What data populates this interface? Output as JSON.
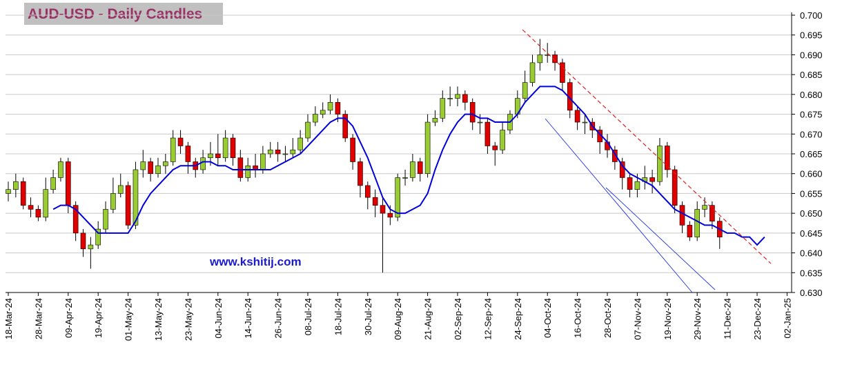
{
  "chart_data": {
    "type": "candlestick",
    "title": "AUD-USD - Daily Candles",
    "annotation": "www.kshitij.com",
    "categories": [
      "18-Mar-24",
      null,
      null,
      null,
      "28-Mar-24",
      null,
      null,
      null,
      "09-Apr-24",
      null,
      null,
      null,
      "19-Apr-24",
      null,
      null,
      null,
      "01-May-24",
      null,
      null,
      null,
      "13-May-24",
      null,
      null,
      null,
      "23-May-24",
      null,
      null,
      null,
      "04-Jun-24",
      null,
      null,
      null,
      "14-Jun-24",
      null,
      null,
      null,
      "26-Jun-24",
      null,
      null,
      null,
      "08-Jul-24",
      null,
      null,
      null,
      "18-Jul-24",
      null,
      null,
      null,
      "30-Jul-24",
      null,
      null,
      null,
      "09-Aug-24",
      null,
      null,
      null,
      "21-Aug-24",
      null,
      null,
      null,
      "02-Sep-24",
      null,
      null,
      null,
      "12-Sep-24",
      null,
      null,
      null,
      "24-Sep-24",
      null,
      null,
      null,
      "04-Oct-24",
      null,
      null,
      null,
      "16-Oct-24",
      null,
      null,
      null,
      "28-Oct-24",
      null,
      null,
      null,
      "07-Nov-24",
      null,
      null,
      null,
      "19-Nov-24",
      null,
      null,
      null,
      "29-Nov-24",
      null,
      null,
      null,
      "11-Dec-24",
      null,
      null,
      null,
      "23-Dec-24",
      null,
      null,
      null,
      "02-Jan-25"
    ],
    "open": [
      0.655,
      0.656,
      0.658,
      0.652,
      0.651,
      0.649,
      0.656,
      0.659,
      0.663,
      0.652,
      0.645,
      0.641,
      0.642,
      0.646,
      0.651,
      0.655,
      0.657,
      0.647,
      0.661,
      0.663,
      0.66,
      0.662,
      0.663,
      0.669,
      0.667,
      0.663,
      0.661,
      0.664,
      0.665,
      0.664,
      0.669,
      0.664,
      0.659,
      0.662,
      0.661,
      0.665,
      0.666,
      0.665,
      0.665,
      0.666,
      0.669,
      0.673,
      0.675,
      0.676,
      0.678,
      0.675,
      0.669,
      0.663,
      0.657,
      0.654,
      0.652,
      0.65,
      0.649,
      0.659,
      0.659,
      0.663,
      0.66,
      0.673,
      0.674,
      0.679,
      0.679,
      0.68,
      0.678,
      0.673,
      0.673,
      0.667,
      0.666,
      0.671,
      0.675,
      0.679,
      0.683,
      0.688,
      0.69,
      0.69,
      0.688,
      0.683,
      0.676,
      0.673,
      0.673,
      0.671,
      0.668,
      0.666,
      0.663,
      0.659,
      0.656,
      0.658,
      0.659,
      0.658,
      0.667,
      0.661,
      0.652,
      0.647,
      0.644,
      0.651,
      0.652,
      0.648,
      null,
      null,
      null,
      null,
      null,
      null,
      null,
      null,
      null
    ],
    "high": [
      0.658,
      0.66,
      0.659,
      0.654,
      0.652,
      0.659,
      0.661,
      0.664,
      0.664,
      0.653,
      0.646,
      0.644,
      0.648,
      0.653,
      0.659,
      0.66,
      0.658,
      0.663,
      0.666,
      0.664,
      0.664,
      0.665,
      0.671,
      0.671,
      0.668,
      0.664,
      0.666,
      0.668,
      0.67,
      0.671,
      0.67,
      0.666,
      0.664,
      0.665,
      0.667,
      0.668,
      0.668,
      0.667,
      0.669,
      0.671,
      0.675,
      0.677,
      0.678,
      0.68,
      0.679,
      0.676,
      0.67,
      0.664,
      0.658,
      0.656,
      0.654,
      0.652,
      0.66,
      0.661,
      0.665,
      0.664,
      0.675,
      0.676,
      0.681,
      0.682,
      0.682,
      0.681,
      0.679,
      0.675,
      0.674,
      0.668,
      0.673,
      0.676,
      0.681,
      0.686,
      0.69,
      0.694,
      0.693,
      0.691,
      0.689,
      0.684,
      0.677,
      0.675,
      0.674,
      0.672,
      0.67,
      0.667,
      0.664,
      0.66,
      0.66,
      0.662,
      0.661,
      0.669,
      0.668,
      0.662,
      0.653,
      0.648,
      0.653,
      0.654,
      0.653,
      0.649,
      null,
      null,
      null,
      null,
      null,
      null,
      null,
      null,
      null
    ],
    "low": [
      0.653,
      0.654,
      0.651,
      0.649,
      0.648,
      0.648,
      0.655,
      0.658,
      0.65,
      0.643,
      0.639,
      0.636,
      0.641,
      0.645,
      0.65,
      0.654,
      0.646,
      0.646,
      0.659,
      0.658,
      0.659,
      0.66,
      0.662,
      0.665,
      0.66,
      0.659,
      0.66,
      0.662,
      0.662,
      0.663,
      0.662,
      0.658,
      0.658,
      0.659,
      0.66,
      0.664,
      0.663,
      0.663,
      0.664,
      0.665,
      0.668,
      0.672,
      0.674,
      0.675,
      0.673,
      0.668,
      0.661,
      0.654,
      0.651,
      0.649,
      0.635,
      0.647,
      0.648,
      0.657,
      0.658,
      0.658,
      0.659,
      0.672,
      0.673,
      0.677,
      0.677,
      0.676,
      0.671,
      0.67,
      0.665,
      0.662,
      0.665,
      0.67,
      0.674,
      0.678,
      0.682,
      0.686,
      0.688,
      0.686,
      0.681,
      0.674,
      0.671,
      0.67,
      0.669,
      0.665,
      0.664,
      0.661,
      0.656,
      0.654,
      0.654,
      0.656,
      0.655,
      0.657,
      0.659,
      0.65,
      0.645,
      0.643,
      0.643,
      0.649,
      0.646,
      0.641,
      null,
      null,
      null,
      null,
      null,
      null,
      null,
      null,
      null
    ],
    "close": [
      0.656,
      0.658,
      0.652,
      0.651,
      0.649,
      0.656,
      0.659,
      0.663,
      0.652,
      0.645,
      0.641,
      0.642,
      0.646,
      0.651,
      0.655,
      0.657,
      0.647,
      0.661,
      0.663,
      0.66,
      0.662,
      0.663,
      0.669,
      0.667,
      0.663,
      0.661,
      0.664,
      0.665,
      0.664,
      0.669,
      0.664,
      0.659,
      0.662,
      0.661,
      0.665,
      0.666,
      0.665,
      0.665,
      0.666,
      0.669,
      0.673,
      0.675,
      0.676,
      0.678,
      0.675,
      0.669,
      0.663,
      0.657,
      0.654,
      0.652,
      0.65,
      0.649,
      0.659,
      0.659,
      0.663,
      0.66,
      0.673,
      0.674,
      0.679,
      0.679,
      0.68,
      0.678,
      0.673,
      0.673,
      0.667,
      0.666,
      0.671,
      0.675,
      0.679,
      0.683,
      0.688,
      0.69,
      0.69,
      0.688,
      0.683,
      0.676,
      0.673,
      0.673,
      0.671,
      0.668,
      0.666,
      0.663,
      0.659,
      0.656,
      0.658,
      0.659,
      0.658,
      0.667,
      0.661,
      0.652,
      0.647,
      0.644,
      0.651,
      0.652,
      0.648,
      0.644,
      null,
      null,
      null,
      null,
      null,
      null,
      null,
      null,
      null
    ],
    "up_color": "#99cc33",
    "down_color": "#e00000",
    "overlays": [
      {
        "type": "line",
        "color": "#0000dd",
        "values": [
          null,
          null,
          null,
          null,
          null,
          null,
          0.651,
          0.652,
          0.652,
          0.651,
          0.649,
          0.647,
          0.645,
          0.645,
          0.645,
          0.645,
          0.645,
          0.648,
          0.652,
          0.655,
          0.657,
          0.659,
          0.661,
          0.662,
          0.662,
          0.662,
          0.663,
          0.663,
          0.662,
          0.662,
          0.661,
          0.661,
          0.661,
          0.661,
          0.661,
          0.661,
          0.662,
          0.663,
          0.664,
          0.665,
          0.667,
          0.669,
          0.671,
          0.673,
          0.674,
          0.674,
          0.672,
          0.668,
          0.664,
          0.659,
          0.654,
          0.651,
          0.65,
          0.65,
          0.651,
          0.652,
          0.655,
          0.661,
          0.666,
          0.67,
          0.673,
          0.675,
          0.675,
          0.674,
          0.674,
          0.673,
          0.673,
          0.673,
          0.675,
          0.678,
          0.68,
          0.682,
          0.682,
          0.682,
          0.681,
          0.679,
          0.677,
          0.675,
          0.672,
          0.67,
          0.668,
          0.665,
          0.662,
          0.66,
          0.659,
          0.658,
          0.657,
          0.655,
          0.653,
          0.651,
          0.65,
          0.649,
          0.648,
          0.647,
          0.647,
          0.646,
          0.645,
          0.645,
          0.644,
          0.644,
          0.642,
          0.644,
          null,
          null,
          null
        ]
      }
    ],
    "ylim": [
      0.63,
      0.7
    ],
    "yticks": [
      {
        "value": 0.63,
        "label": "0.630"
      },
      {
        "value": 0.635,
        "label": "0.635"
      },
      {
        "value": 0.64,
        "label": "0.640"
      },
      {
        "value": 0.645,
        "label": "0.645"
      },
      {
        "value": 0.65,
        "label": "0.650"
      },
      {
        "value": 0.655,
        "label": "0.655"
      },
      {
        "value": 0.66,
        "label": "0.660"
      },
      {
        "value": 0.665,
        "label": "0.665"
      },
      {
        "value": 0.67,
        "label": "0.670"
      },
      {
        "value": 0.675,
        "label": "0.675"
      },
      {
        "value": 0.68,
        "label": "0.680"
      },
      {
        "value": 0.685,
        "label": "0.685"
      },
      {
        "value": 0.69,
        "label": "0.690"
      },
      {
        "value": 0.695,
        "label": "0.695"
      },
      {
        "value": 0.7,
        "label": "0.700"
      }
    ],
    "grid": true
  }
}
